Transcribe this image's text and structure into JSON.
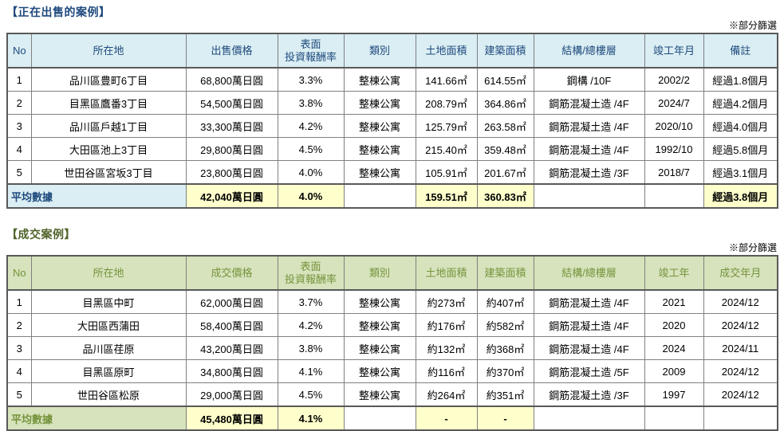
{
  "theme": {
    "highlight": "#FFFFCC",
    "border_inner": "#808080",
    "border_heavy": "#595959"
  },
  "cell_names": [
    "cell-no",
    "cell-location",
    "cell-price",
    "cell-yield",
    "cell-type",
    "cell-land-area",
    "cell-building-area",
    "cell-structure",
    "cell-completion",
    "cell-remark"
  ],
  "sections": [
    {
      "id": "sale",
      "title": "【正在出售的案例】",
      "note": "※部分篩選",
      "colors": {
        "header_bg": "#DAEEF3",
        "header_text": "#1F497D",
        "title": "#1F497D"
      },
      "columns": [
        "No",
        "所在地",
        "出售價格",
        "表面\n投資報酬率",
        "類別",
        "土地面積",
        "建築面積",
        "結構/總樓層",
        "竣工年月",
        "備註"
      ],
      "rows": [
        [
          "1",
          "品川區豊町6丁目",
          "68,800萬日圓",
          "3.3%",
          "整棟公寓",
          "141.66㎡",
          "614.55㎡",
          "鋼構 /10F",
          "2002/2",
          "經過1.8個月"
        ],
        [
          "2",
          "目黑區鷹番3丁目",
          "54,500萬日圓",
          "3.8%",
          "整棟公寓",
          "208.79㎡",
          "364.86㎡",
          "鋼筋混凝土造 /4F",
          "2024/7",
          "經過4.2個月"
        ],
        [
          "3",
          "品川區戶越1丁目",
          "33,300萬日圓",
          "4.2%",
          "整棟公寓",
          "125.79㎡",
          "263.58㎡",
          "鋼筋混凝土造 /4F",
          "2020/10",
          "經過4.0個月"
        ],
        [
          "4",
          "大田區池上3丁目",
          "29,800萬日圓",
          "4.5%",
          "整棟公寓",
          "215.40㎡",
          "359.48㎡",
          "鋼筋混凝土造 /4F",
          "1992/10",
          "經過5.8個月"
        ],
        [
          "5",
          "世田谷區宮坂3丁目",
          "23,800萬日圓",
          "4.0%",
          "整棟公寓",
          "105.91㎡",
          "201.67㎡",
          "鋼筋混凝土造 /3F",
          "2018/7",
          "經過3.1個月"
        ]
      ],
      "average": {
        "label": "平均數據",
        "values": [
          "42,040萬日圓",
          "4.0%",
          "",
          "159.51㎡",
          "360.83㎡",
          "",
          "",
          "經過3.8個月"
        ],
        "highlight": [
          true,
          true,
          false,
          true,
          true,
          false,
          false,
          true
        ]
      }
    },
    {
      "id": "sold",
      "title": "【成交案例】",
      "note": "※部分篩選",
      "colors": {
        "header_bg": "#D6E3BC",
        "header_text": "#76933C",
        "title": "#4F6228"
      },
      "columns": [
        "No",
        "所在地",
        "成交價格",
        "表面\n投資報酬率",
        "類別",
        "土地面積",
        "建築面積",
        "結構/總樓層",
        "竣工年",
        "成交年月"
      ],
      "rows": [
        [
          "1",
          "目黑區中町",
          "62,000萬日圓",
          "3.7%",
          "整棟公寓",
          "約273㎡",
          "約407㎡",
          "鋼筋混凝土造 /4F",
          "2021",
          "2024/12"
        ],
        [
          "2",
          "大田區西蒲田",
          "58,400萬日圓",
          "4.2%",
          "整棟公寓",
          "約176㎡",
          "約582㎡",
          "鋼筋混凝土造 /4F",
          "2020",
          "2024/12"
        ],
        [
          "3",
          "品川區荏原",
          "43,200萬日圓",
          "3.8%",
          "整棟公寓",
          "約132㎡",
          "約368㎡",
          "鋼筋混凝土造 /4F",
          "2024",
          "2024/11"
        ],
        [
          "4",
          "目黑區原町",
          "34,800萬日圓",
          "4.1%",
          "整棟公寓",
          "約116㎡",
          "約370㎡",
          "鋼筋混凝土造 /5F",
          "2009",
          "2024/12"
        ],
        [
          "5",
          "世田谷區松原",
          "29,000萬日圓",
          "4.5%",
          "整棟公寓",
          "約264㎡",
          "約351㎡",
          "鋼筋混凝土造 /3F",
          "1997",
          "2024/12"
        ]
      ],
      "average": {
        "label": "平均數據",
        "values": [
          "45,480萬日圓",
          "4.1%",
          "",
          "-",
          "-",
          "",
          "",
          ""
        ],
        "highlight": [
          true,
          true,
          false,
          true,
          true,
          false,
          false,
          false
        ]
      }
    }
  ]
}
